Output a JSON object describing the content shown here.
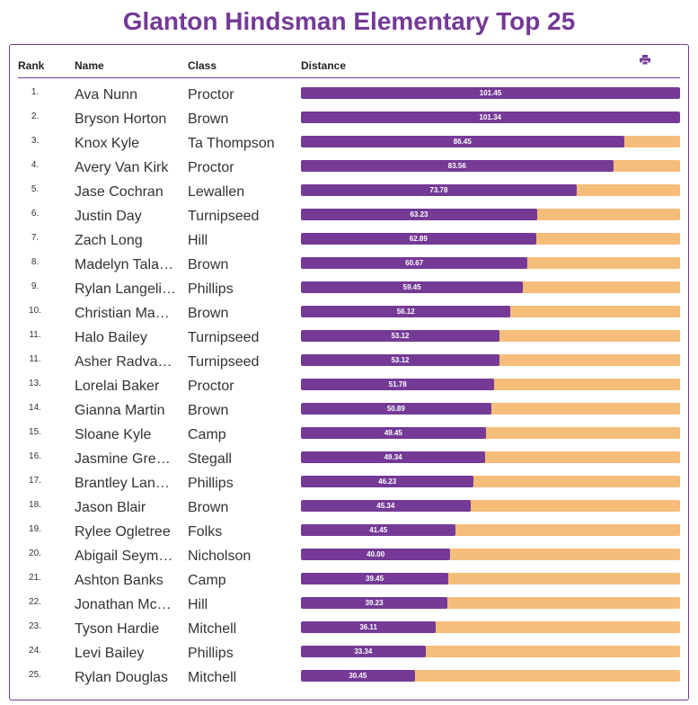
{
  "title": "Glanton Hindsman Elementary Top 25",
  "headers": {
    "rank": "Rank",
    "name": "Name",
    "class": "Class",
    "distance": "Distance"
  },
  "print_icon": "print-icon",
  "colors": {
    "accent": "#743a96",
    "bar_bg": "#f5bd7a"
  },
  "rows": [
    {
      "rank": "1.",
      "name": "Ava Nunn",
      "class": "Proctor",
      "distance": "101.45"
    },
    {
      "rank": "2.",
      "name": "Bryson Horton",
      "class": "Brown",
      "distance": "101.34"
    },
    {
      "rank": "3.",
      "name": "Knox Kyle",
      "class": "Ta Thompson",
      "distance": "86.45"
    },
    {
      "rank": "4.",
      "name": "Avery Van Kirk",
      "class": "Proctor",
      "distance": "83.56"
    },
    {
      "rank": "5.",
      "name": "Jase Cochran",
      "class": "Lewallen",
      "distance": "73.78"
    },
    {
      "rank": "6.",
      "name": "Justin Day",
      "class": "Turnipseed",
      "distance": "63.23"
    },
    {
      "rank": "7.",
      "name": "Zach Long",
      "class": "Hill",
      "distance": "62.89"
    },
    {
      "rank": "8.",
      "name": "Madelyn Tala…",
      "class": "Brown",
      "distance": "60.67"
    },
    {
      "rank": "9.",
      "name": "Rylan Langeli…",
      "class": "Phillips",
      "distance": "59.45"
    },
    {
      "rank": "10.",
      "name": "Christian Ma…",
      "class": "Brown",
      "distance": "56.12"
    },
    {
      "rank": "11.",
      "name": "Halo Bailey",
      "class": "Turnipseed",
      "distance": "53.12"
    },
    {
      "rank": "11.",
      "name": "Asher Radva…",
      "class": "Turnipseed",
      "distance": "53.12"
    },
    {
      "rank": "13.",
      "name": "Lorelai Baker",
      "class": "Proctor",
      "distance": "51.78"
    },
    {
      "rank": "14.",
      "name": "Gianna Martin",
      "class": "Brown",
      "distance": "50.89"
    },
    {
      "rank": "15.",
      "name": "Sloane Kyle",
      "class": "Camp",
      "distance": "49.45"
    },
    {
      "rank": "16.",
      "name": "Jasmine Gre…",
      "class": "Stegall",
      "distance": "49.34"
    },
    {
      "rank": "17.",
      "name": "Brantley Lan…",
      "class": "Phillips",
      "distance": "46.23"
    },
    {
      "rank": "18.",
      "name": "Jason Blair",
      "class": "Brown",
      "distance": "45.34"
    },
    {
      "rank": "19.",
      "name": "Rylee Ogletree",
      "class": "Folks",
      "distance": "41.45"
    },
    {
      "rank": "20.",
      "name": "Abigail Seym…",
      "class": "Nicholson",
      "distance": "40.00"
    },
    {
      "rank": "21.",
      "name": "Ashton Banks",
      "class": "Camp",
      "distance": "39.45"
    },
    {
      "rank": "22.",
      "name": "Jonathan Mc…",
      "class": "Hill",
      "distance": "39.23"
    },
    {
      "rank": "23.",
      "name": "Tyson Hardie",
      "class": "Mitchell",
      "distance": "36.11"
    },
    {
      "rank": "24.",
      "name": "Levi Bailey",
      "class": "Phillips",
      "distance": "33.34"
    },
    {
      "rank": "25.",
      "name": "Rylan Douglas",
      "class": "Mitchell",
      "distance": "30.45"
    }
  ]
}
